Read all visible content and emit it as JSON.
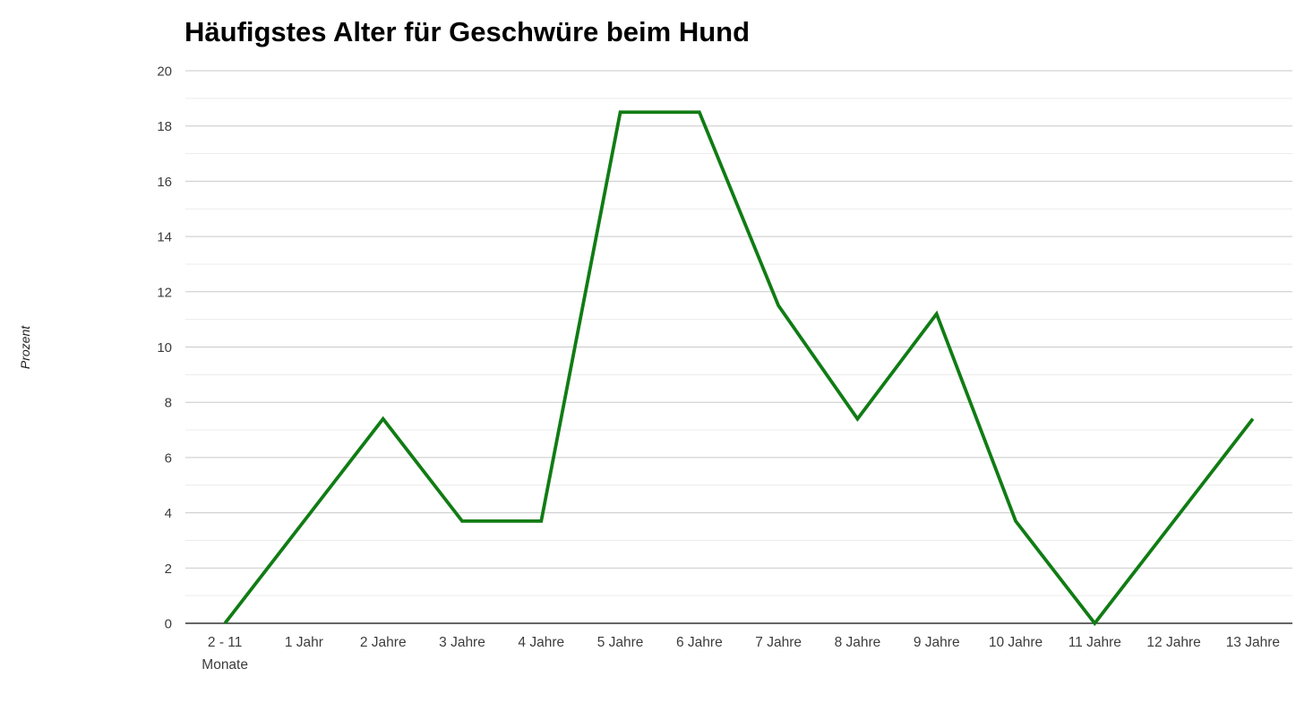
{
  "chart_data": {
    "type": "line",
    "title": "Häufigstes Alter für Geschwüre beim Hund",
    "xlabel": "",
    "ylabel": "Prozent",
    "categories": [
      "2 - 11\nMonate",
      "1 Jahr",
      "2 Jahre",
      "3 Jahre",
      "4 Jahre",
      "5 Jahre",
      "6 Jahre",
      "7 Jahre",
      "8 Jahre",
      "9 Jahre",
      "10 Jahre",
      "11 Jahre",
      "12 Jahre",
      "13 Jahre"
    ],
    "series": [
      {
        "name": "Prozent",
        "values": [
          0,
          3.7,
          7.4,
          3.7,
          3.7,
          18.5,
          18.5,
          11.5,
          7.4,
          11.2,
          3.7,
          0,
          3.7,
          7.4
        ],
        "color": "#107c14"
      }
    ],
    "ylim": [
      0,
      20
    ],
    "ytick_step": 2,
    "minor_grid_step": 1,
    "grid": true,
    "legend": "none",
    "colors": {
      "major_grid": "#c9c9c9",
      "minor_grid": "#ececec",
      "axis_line": "#333333",
      "tick_label": "#3c3c3c",
      "title": "#000000"
    }
  }
}
